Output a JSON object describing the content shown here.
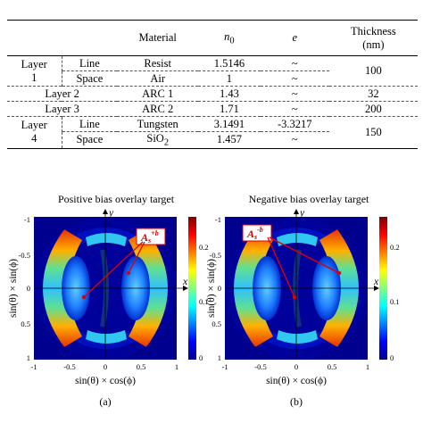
{
  "table": {
    "headers": {
      "material": "Material",
      "n0_main": "n",
      "n0_sub": "0",
      "e": "e",
      "thickness_line1": "Thickness",
      "thickness_line2": "(nm)"
    },
    "layer1": {
      "label_a": "Layer",
      "label_b": "1",
      "line": {
        "sub": "Line",
        "material": "Resist",
        "n0": "1.5146",
        "e": "~"
      },
      "space": {
        "sub": "Space",
        "material": "Air",
        "n0": "1",
        "e": "~"
      },
      "thickness": "100"
    },
    "layer2": {
      "label": "Layer 2",
      "material": "ARC 1",
      "n0": "1.43",
      "e": "~",
      "thickness": "32"
    },
    "layer3": {
      "label": "Layer 3",
      "material": "ARC 2",
      "n0": "1.71",
      "e": "~",
      "thickness": "200"
    },
    "layer4": {
      "label_a": "Layer",
      "label_b": "4",
      "line": {
        "sub": "Line",
        "material": "Tungsten",
        "n0": "3.1491",
        "e": "-3.3217"
      },
      "space": {
        "sub": "Space",
        "material_main": "SiO",
        "material_sub": "2",
        "n0": "1.457",
        "e": "~"
      },
      "thickness": "150"
    }
  },
  "panels": [
    {
      "title": "Positive bias overlay target",
      "annotation_main": "A",
      "annotation_sub": "s",
      "annotation_sup": "+b",
      "caption": "(a)"
    },
    {
      "title": "Negative bias overlay target",
      "annotation_main": "A",
      "annotation_sub": "s",
      "annotation_sup": "-b",
      "caption": "(b)"
    }
  ],
  "axes": {
    "x_axis_label": "x",
    "y_axis_label": "y",
    "xlabel": "sin(θ) × cos(ϕ)",
    "ylabel": "sin(θ) × sin(ϕ)",
    "x_ticks": [
      "-1",
      "-0.5",
      "0",
      "0.5",
      "1"
    ],
    "y_ticks": [
      "-1",
      "-0.5",
      "0",
      "0.5",
      "1"
    ],
    "colorbar_ticks": [
      "0.2",
      "0.1",
      "0"
    ]
  },
  "colors": {
    "accent": "#e00000",
    "background": "#00008f"
  }
}
